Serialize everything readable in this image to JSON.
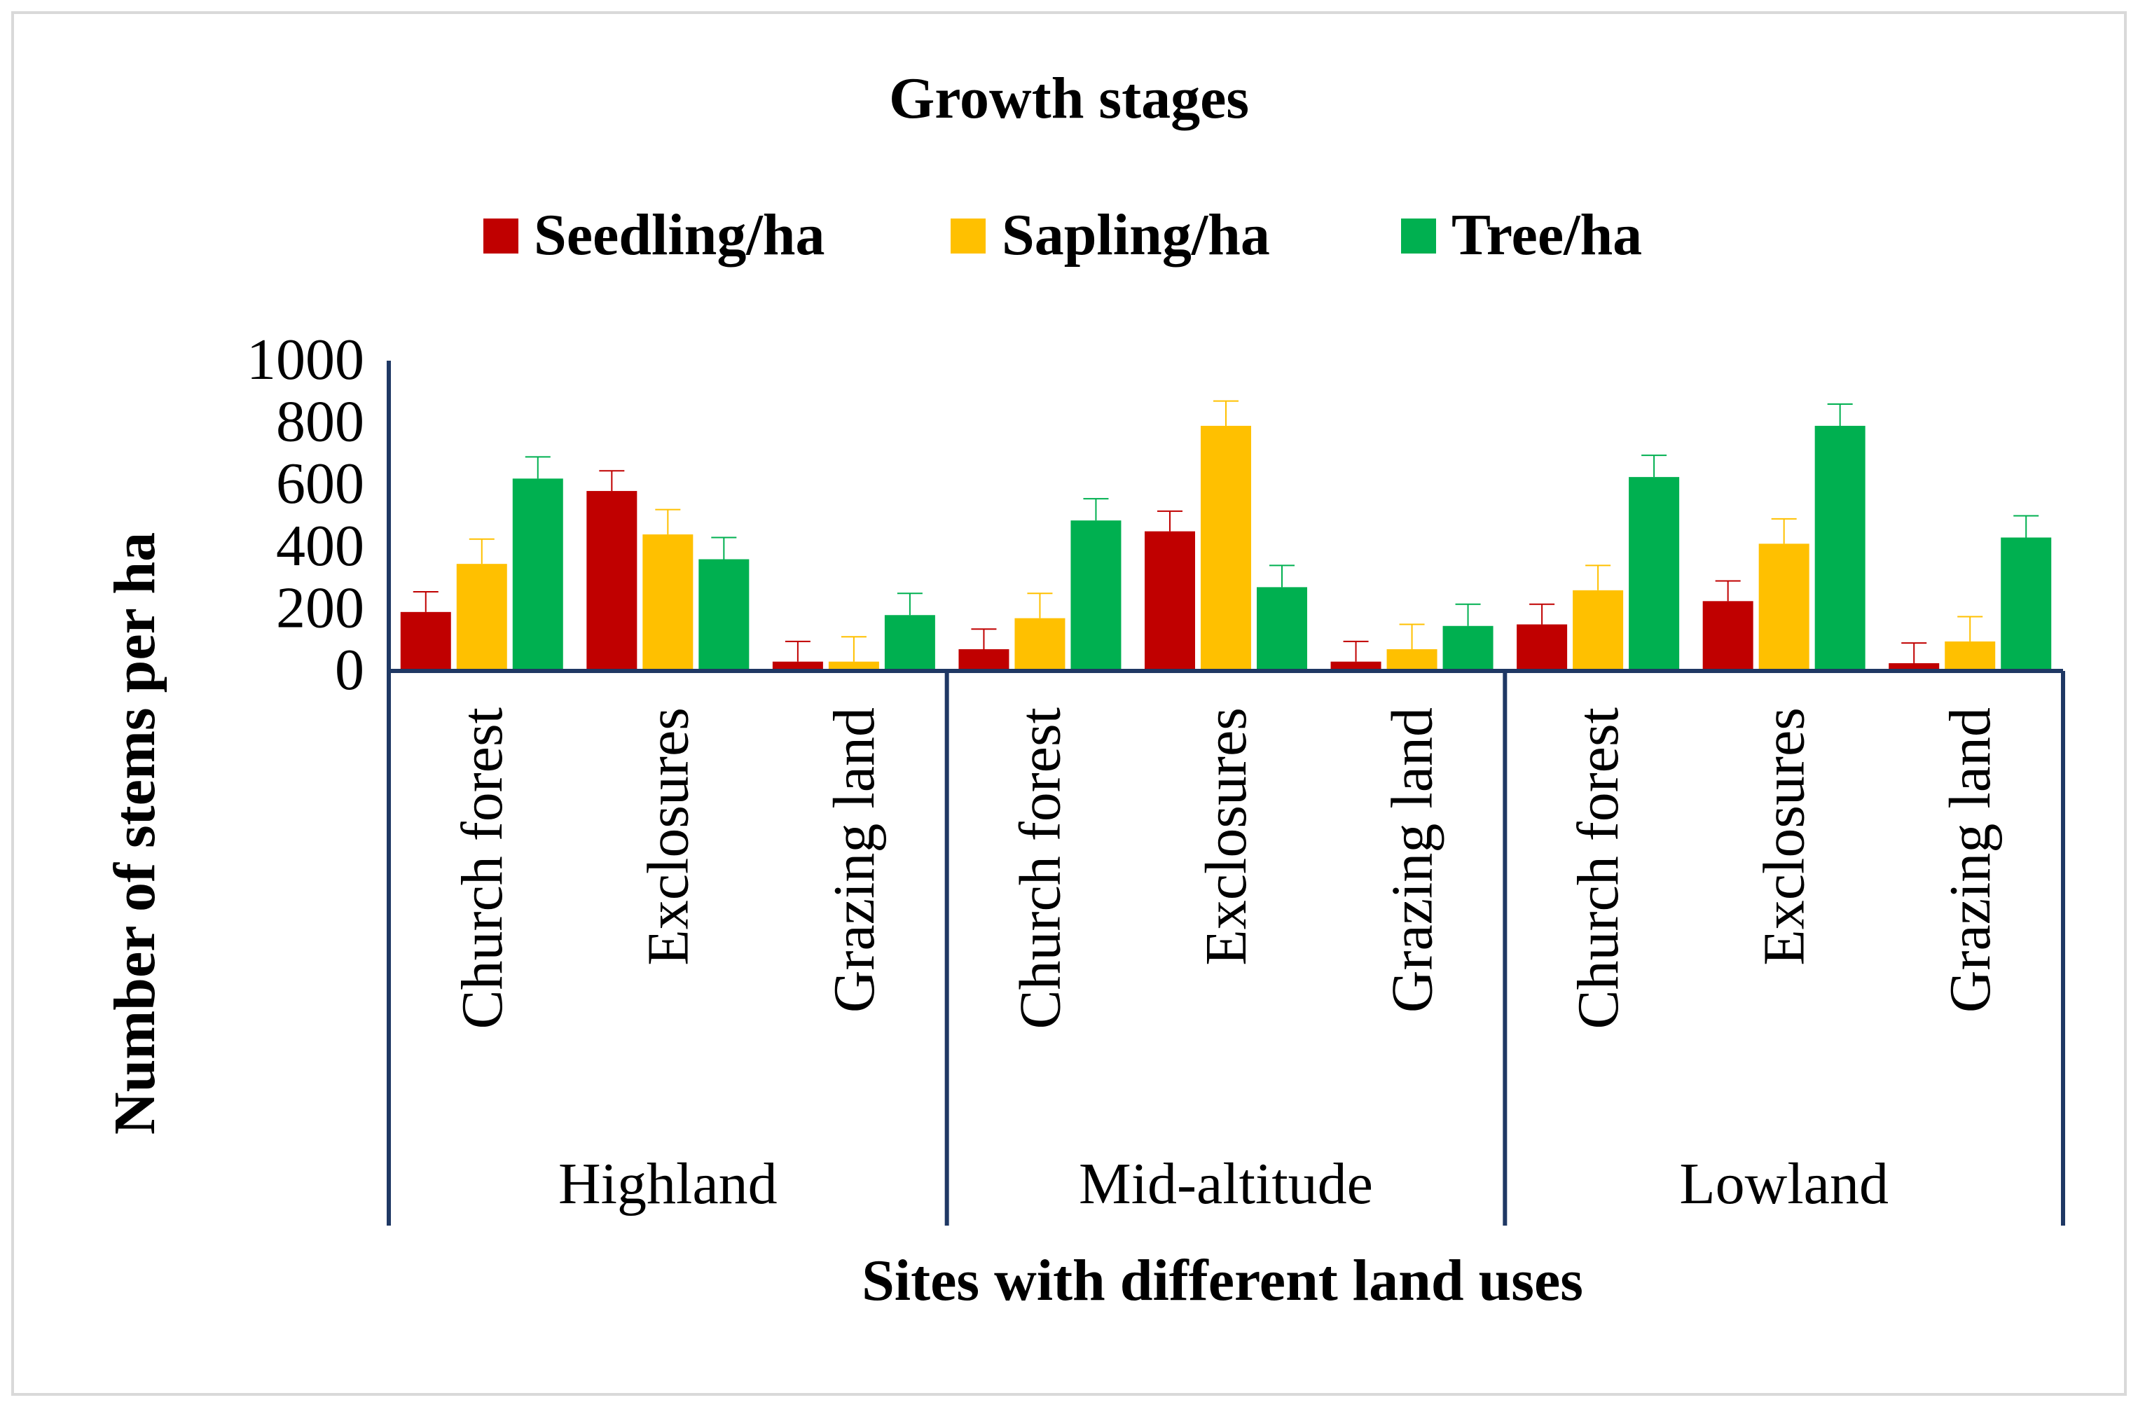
{
  "chart_data": {
    "type": "bar",
    "title": "Growth stages",
    "xlabel": "Sites with different land uses",
    "ylabel": "Number of stems per ha",
    "ylim": [
      0,
      1000
    ],
    "yticks": [
      "0",
      "200",
      "400",
      "600",
      "800",
      "1000"
    ],
    "groups": [
      {
        "name": "Highland",
        "categories": [
          "Church forest",
          "Exclosures",
          "Grazing land"
        ]
      },
      {
        "name": "Mid-altitude",
        "categories": [
          "Church forest",
          "Exclosures",
          "Grazing land"
        ]
      },
      {
        "name": "Lowland",
        "categories": [
          "Church forest",
          "Exclosures",
          "Grazing land"
        ]
      }
    ],
    "series": [
      {
        "name": "Seedling/ha",
        "color": "#C00000",
        "values": [
          190,
          580,
          30,
          70,
          450,
          30,
          150,
          225,
          25
        ],
        "errors": [
          65,
          65,
          65,
          65,
          65,
          65,
          65,
          65,
          65
        ]
      },
      {
        "name": "Sapling/ha",
        "color": "#FFC000",
        "values": [
          345,
          440,
          30,
          170,
          790,
          70,
          260,
          410,
          95
        ],
        "errors": [
          80,
          80,
          80,
          80,
          80,
          80,
          80,
          80,
          80
        ]
      },
      {
        "name": "Tree/ha",
        "color": "#00B050",
        "values": [
          620,
          360,
          180,
          485,
          270,
          145,
          625,
          790,
          430
        ],
        "errors": [
          70,
          70,
          70,
          70,
          70,
          70,
          70,
          70,
          70
        ]
      }
    ],
    "legend": "top"
  }
}
